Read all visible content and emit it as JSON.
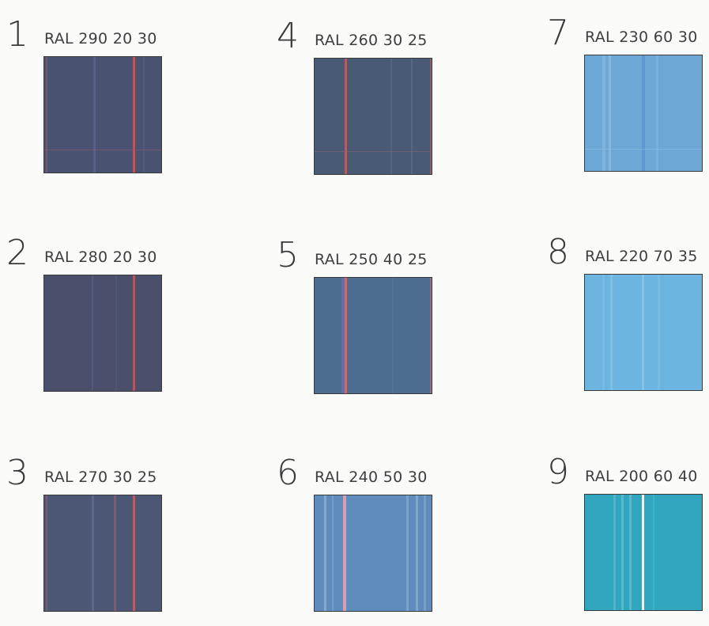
{
  "swatches": [
    {
      "number": "1",
      "code": "RAL 290 20 30",
      "color": "#4a5272",
      "stripes": [
        {
          "color": "#a05a6a",
          "opacity": 0.55
        },
        {
          "color": "#5f6c93",
          "opacity": 0.6
        },
        {
          "color": "#c85a5a",
          "opacity": 0.85
        },
        {
          "color": "#566186",
          "opacity": 0.5
        }
      ],
      "hline_color": "#8a5a6a"
    },
    {
      "number": "2",
      "code": "RAL 280 20 30",
      "color": "#4a4f6b",
      "stripes": [
        {
          "color": "#5c6585",
          "opacity": 0.55
        },
        {
          "color": "#565f7f",
          "opacity": 0.5
        },
        {
          "color": "#c05a60",
          "opacity": 0.85
        }
      ],
      "hline_color": null
    },
    {
      "number": "3",
      "code": "RAL 270 30 25",
      "color": "#4c5776",
      "stripes": [
        {
          "color": "#9a5f70",
          "opacity": 0.55
        },
        {
          "color": "#6a759a",
          "opacity": 0.55
        },
        {
          "color": "#9c6276",
          "opacity": 0.55
        },
        {
          "color": "#c66066",
          "opacity": 0.85
        }
      ],
      "hline_color": null
    },
    {
      "number": "4",
      "code": "RAL 260 30 25",
      "color": "#485a74",
      "stripes": [
        {
          "color": "#c35f63",
          "opacity": 0.85
        },
        {
          "color": "#5b6d90",
          "opacity": 0.55
        },
        {
          "color": "#5f7498",
          "opacity": 0.5
        },
        {
          "color": "#b76070",
          "opacity": 0.6
        }
      ],
      "hline_color": "#8c6070"
    },
    {
      "number": "5",
      "code": "RAL 250 40 25",
      "color": "#4d6d90",
      "stripes": [
        {
          "color": "#6c6fb0",
          "opacity": 0.8
        },
        {
          "color": "#d46a6e",
          "opacity": 0.9
        },
        {
          "color": "#5d7ca5",
          "opacity": 0.5
        },
        {
          "color": "#c76b78",
          "opacity": 0.6
        }
      ],
      "hline_color": null
    },
    {
      "number": "6",
      "code": "RAL 240 50 30",
      "color": "#5f8cbd",
      "stripes": [
        {
          "color": "#8fb3d8",
          "opacity": 0.7
        },
        {
          "color": "#7fa6d0",
          "opacity": 0.6
        },
        {
          "color": "#e4a0b0",
          "opacity": 0.9
        },
        {
          "color": "#8cb0d6",
          "opacity": 0.6
        },
        {
          "color": "#96b8db",
          "opacity": 0.6
        },
        {
          "color": "#8aaed5",
          "opacity": 0.5
        }
      ],
      "hline_color": null
    },
    {
      "number": "7",
      "code": "RAL 230 60 30",
      "color": "#6ca7d6",
      "stripes": [
        {
          "color": "#8dbee2",
          "opacity": 0.55
        },
        {
          "color": "#9ac6e6",
          "opacity": 0.55
        },
        {
          "color": "#5a8ed0",
          "opacity": 0.7
        },
        {
          "color": "#8cbce2",
          "opacity": 0.45
        }
      ],
      "hline_color": "#8fbde0"
    },
    {
      "number": "8",
      "code": "RAL 220 70 35",
      "color": "#6bb5e0",
      "stripes": [
        {
          "color": "#84c3e8",
          "opacity": 0.5
        },
        {
          "color": "#8fc9ea",
          "opacity": 0.55
        },
        {
          "color": "#92cbee",
          "opacity": 0.6
        },
        {
          "color": "#88c5ea",
          "opacity": 0.45
        }
      ],
      "hline_color": null
    },
    {
      "number": "9",
      "code": "RAL 200 60 40",
      "color": "#30a7bf",
      "stripes": [
        {
          "color": "#60bfd4",
          "opacity": 0.6
        },
        {
          "color": "#6cc6d8",
          "opacity": 0.6
        },
        {
          "color": "#72c9da",
          "opacity": 0.55
        },
        {
          "color": "#f0f8fa",
          "opacity": 0.95
        },
        {
          "color": "#52b8cd",
          "opacity": 0.5
        }
      ],
      "hline_color": null
    }
  ]
}
